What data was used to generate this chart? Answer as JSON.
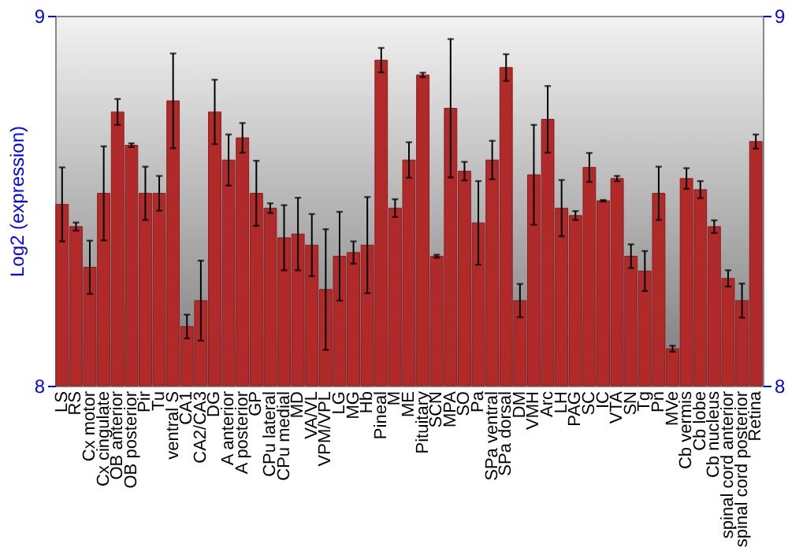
{
  "chart_data": {
    "type": "bar",
    "ylabel": "Log2 (expression)",
    "categories": [
      "LS",
      "RS",
      "Cx motor",
      "Cx cingulate",
      "OB anterior",
      "OB posterior",
      "Pir",
      "Tu",
      "ventral S",
      "CA1",
      "CA2/CA3",
      "DG",
      "A anterior",
      "A posterior",
      "GP",
      "CPu lateral",
      "CPu medial",
      "MD",
      "VA/VL",
      "VPM/VPL",
      "LG",
      "MG",
      "Hb",
      "Pineal",
      "M",
      "ME",
      "Pituitary",
      "SCN",
      "MPA",
      "SO",
      "Pa",
      "SPa ventral",
      "SPa dorsal",
      "DM",
      "VMH",
      "Arc",
      "LH",
      "PAG",
      "SC",
      "IC",
      "VTA",
      "SN",
      "Tg",
      "Pn",
      "MVe",
      "Cb vermis",
      "Cb lobe",
      "Cb nucleus",
      "spinal cord anterior",
      "spinal cord posterior",
      "Retina"
    ],
    "series": [
      {
        "color": "#b02a2a",
        "values": [
          8.49,
          8.43,
          8.32,
          8.52,
          8.74,
          8.65,
          8.52,
          8.52,
          8.77,
          8.16,
          8.23,
          8.74,
          8.61,
          8.67,
          8.52,
          8.48,
          8.4,
          8.41,
          8.38,
          8.26,
          8.35,
          8.36,
          8.38,
          8.88,
          8.48,
          8.61,
          8.84,
          8.35,
          8.75,
          8.58,
          8.44,
          8.61,
          8.86,
          8.23,
          8.57,
          8.72,
          8.48,
          8.46,
          8.59,
          8.5,
          8.56,
          8.35,
          8.31,
          8.52,
          8.1,
          8.56,
          8.53,
          8.43,
          8.29,
          8.23,
          8.66
        ],
        "errors": [
          0.1,
          0.011,
          0.072,
          0.127,
          0.035,
          0.005,
          0.072,
          0.047,
          0.128,
          0.032,
          0.108,
          0.087,
          0.069,
          0.04,
          0.088,
          0.013,
          0.088,
          0.098,
          0.084,
          0.163,
          0.12,
          0.03,
          0.13,
          0.033,
          0.024,
          0.048,
          0.006,
          0.004,
          0.187,
          0.025,
          0.113,
          0.052,
          0.036,
          0.045,
          0.135,
          0.09,
          0.076,
          0.012,
          0.039,
          0.002,
          0.007,
          0.032,
          0.054,
          0.072,
          0.008,
          0.028,
          0.023,
          0.017,
          0.022,
          0.046,
          0.019
        ]
      }
    ],
    "ylim": [
      8,
      9
    ],
    "yticks": [
      8,
      9
    ],
    "y2lim": [
      8,
      9
    ],
    "y2ticks": [
      8,
      9
    ],
    "grid": false
  }
}
